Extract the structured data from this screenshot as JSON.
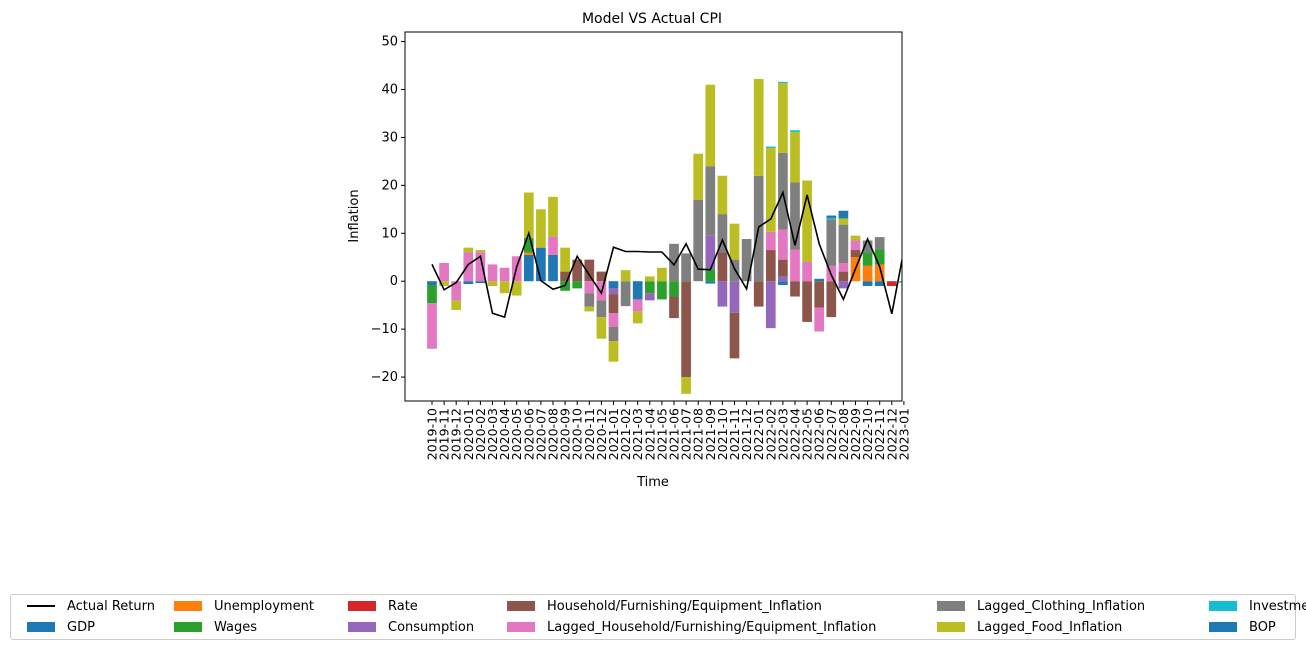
{
  "chart_data": {
    "type": "bar",
    "stacked": true,
    "title": "Model VS Actual CPI",
    "xlabel": "Time",
    "ylabel": "Inflation",
    "ylim": [
      -25,
      52
    ],
    "yticks": [
      -20,
      -10,
      0,
      10,
      20,
      30,
      40,
      50
    ],
    "categories": [
      "2019-10",
      "2019-11",
      "2019-12",
      "2020-01",
      "2020-02",
      "2020-03",
      "2020-04",
      "2020-05",
      "2020-06",
      "2020-07",
      "2020-08",
      "2020-09",
      "2020-10",
      "2020-11",
      "2020-12",
      "2021-01",
      "2021-02",
      "2021-03",
      "2021-04",
      "2021-05",
      "2021-06",
      "2021-07",
      "2021-08",
      "2021-09",
      "2021-10",
      "2021-11",
      "2021-12",
      "2022-01",
      "2022-02",
      "2022-03",
      "2022-04",
      "2022-05",
      "2022-06",
      "2022-07",
      "2022-08",
      "2022-09",
      "2022-10",
      "2022-11",
      "2022-12",
      "2023-01"
    ],
    "line": {
      "name": "Actual Return",
      "color": "#000000",
      "values": [
        3.5,
        -1.8,
        -0.3,
        3.5,
        5.2,
        -6.7,
        -7.5,
        3.0,
        10.0,
        0.1,
        -1.7,
        -0.9,
        5.2,
        1.3,
        -2.5,
        7.1,
        6.2,
        6.2,
        6.1,
        6.1,
        3.4,
        7.8,
        2.5,
        2.4,
        8.6,
        2.6,
        -1.6,
        11.3,
        13.0,
        18.5,
        7.5,
        18.0,
        7.8,
        1.3,
        -3.8,
        2.6,
        8.8,
        3.0,
        -6.8,
        6.5
      ]
    },
    "series": [
      {
        "name": "GDP",
        "color": "#1f77b4",
        "values": [
          -0.8,
          0,
          0,
          -0.6,
          -0.4,
          0,
          0,
          0,
          5.5,
          7.0,
          5.5,
          0,
          0,
          0,
          0,
          -1.5,
          0,
          -3.8,
          0,
          0,
          0,
          0,
          0,
          -0.5,
          0,
          0,
          0,
          0,
          0,
          -0.8,
          0,
          0,
          0,
          0,
          0,
          0,
          -1.0,
          -1.0,
          0,
          0
        ]
      },
      {
        "name": "Unemployment",
        "color": "#ff7f0e",
        "values": [
          0,
          0,
          0,
          0,
          0,
          0,
          0,
          0,
          0.5,
          0,
          0,
          0,
          0,
          0,
          0,
          0,
          0,
          0,
          0,
          0,
          0,
          0,
          0,
          0,
          0,
          0,
          0,
          0,
          0,
          0,
          0,
          0,
          0,
          0,
          0,
          5.0,
          3.2,
          3.5,
          0,
          0
        ]
      },
      {
        "name": "Wages",
        "color": "#2ca02c",
        "values": [
          -3.8,
          0,
          0,
          0,
          0,
          0,
          0,
          0,
          3.0,
          0,
          0,
          -2.0,
          -1.5,
          0,
          0,
          0,
          0,
          0,
          -2.5,
          -3.8,
          -3.2,
          0,
          0,
          2.5,
          0,
          0,
          0,
          0,
          0,
          0,
          0,
          0,
          0,
          0,
          0,
          0,
          2.8,
          3.2,
          0,
          0
        ]
      },
      {
        "name": "Rate",
        "color": "#d62728",
        "values": [
          0,
          0,
          0,
          0,
          0,
          0,
          0,
          0,
          0,
          0,
          0,
          0,
          0,
          0,
          0,
          0,
          0,
          0,
          0,
          0,
          0,
          0,
          0,
          0,
          0,
          0,
          0,
          0,
          0,
          0,
          0,
          0,
          0,
          0,
          0,
          0,
          0,
          0,
          -1.0,
          0
        ]
      },
      {
        "name": "Consumption",
        "color": "#9467bd",
        "values": [
          0,
          0,
          0,
          0,
          0,
          0,
          0,
          0,
          0,
          0,
          0,
          0,
          0,
          0,
          0,
          -1.2,
          0,
          0,
          -1.5,
          0,
          0,
          0,
          0,
          7.0,
          -5.3,
          -6.6,
          0,
          0,
          -9.8,
          1.0,
          0,
          0,
          0,
          0,
          -1.5,
          0,
          0,
          0,
          0,
          0
        ]
      },
      {
        "name": "Household/Furnishing/Equipment_Inflation",
        "color": "#8c564b",
        "values": [
          0,
          0,
          0,
          0,
          0,
          0,
          0,
          0,
          0,
          0,
          0,
          2.0,
          4.5,
          4.5,
          2.0,
          -4.0,
          0,
          0,
          0,
          0,
          -4.5,
          -20.0,
          0,
          0,
          6.0,
          -9.5,
          0,
          -5.3,
          6.5,
          3.5,
          -3.2,
          -8.5,
          -5.5,
          -7.5,
          2.0,
          1.5,
          0,
          0,
          0,
          0
        ]
      },
      {
        "name": "Lagged_Household/Furnishing/Equipment_Inflation",
        "color": "#e377c2",
        "values": [
          -9.5,
          3.8,
          -4.0,
          6.0,
          6.0,
          3.5,
          2.8,
          5.2,
          0,
          0,
          3.8,
          0,
          0,
          -2.5,
          -4.0,
          -2.8,
          0,
          -2.5,
          0,
          0,
          0,
          0,
          0,
          0,
          0,
          0,
          0,
          0,
          3.8,
          6.3,
          6.6,
          4.0,
          -5.0,
          3.2,
          1.8,
          2.0,
          0,
          0,
          0,
          0
        ]
      },
      {
        "name": "Lagged_Clothing_Inflation",
        "color": "#7f7f7f",
        "values": [
          0,
          0,
          0,
          0,
          0,
          0,
          0,
          0,
          0,
          0,
          0,
          0,
          0,
          -2.8,
          -3.5,
          -3.0,
          -5.2,
          0,
          0,
          0,
          7.8,
          5.8,
          17.0,
          14.5,
          8.0,
          4.5,
          8.8,
          22.0,
          0,
          16.0,
          14.0,
          0,
          0,
          9.7,
          8.0,
          0,
          2.5,
          2.5,
          0,
          0
        ]
      },
      {
        "name": "Lagged_Food_Inflation",
        "color": "#bcbd22",
        "values": [
          0,
          -1.0,
          -2.0,
          1.0,
          0.5,
          -1.0,
          -2.5,
          -3.0,
          9.5,
          8.0,
          8.3,
          5.0,
          0,
          -1.0,
          -4.5,
          -4.3,
          2.3,
          -2.5,
          1.0,
          2.8,
          0,
          -3.5,
          9.6,
          17.0,
          8.0,
          7.5,
          0,
          20.2,
          17.5,
          14.5,
          10.5,
          17.0,
          0,
          0,
          1.3,
          1.0,
          0,
          0,
          0,
          0
        ]
      },
      {
        "name": "Investment",
        "color": "#17becf",
        "values": [
          0,
          0,
          0,
          0,
          0,
          0,
          0,
          0,
          0,
          0,
          0,
          0,
          0,
          0,
          0,
          0,
          0,
          0,
          0,
          0,
          0,
          0,
          0,
          0,
          0,
          0,
          0,
          0,
          0.3,
          0.3,
          0.4,
          0,
          0,
          0.3,
          0,
          0,
          0,
          0,
          0,
          -0.3
        ]
      },
      {
        "name": "BOP",
        "color": "#1f77b4",
        "values": [
          0,
          0,
          0,
          0,
          0,
          0,
          0,
          0,
          0,
          0,
          0,
          0,
          0,
          0,
          0,
          0,
          0,
          0,
          0,
          0,
          0,
          0,
          0,
          0,
          0,
          0,
          0,
          0,
          0,
          0,
          0,
          0,
          0.5,
          0.5,
          1.6,
          0,
          0,
          0,
          0,
          0
        ]
      }
    ],
    "legend": {
      "placement": "bottom",
      "columns": 6,
      "entries": [
        {
          "label": "Actual Return",
          "kind": "line",
          "color": "#000000"
        },
        {
          "label": "GDP",
          "kind": "patch",
          "color": "#1f77b4"
        },
        {
          "label": "Unemployment",
          "kind": "patch",
          "color": "#ff7f0e"
        },
        {
          "label": "Wages",
          "kind": "patch",
          "color": "#2ca02c"
        },
        {
          "label": "Rate",
          "kind": "patch",
          "color": "#d62728"
        },
        {
          "label": "Consumption",
          "kind": "patch",
          "color": "#9467bd"
        },
        {
          "label": "Household/Furnishing/Equipment_Inflation",
          "kind": "patch",
          "color": "#8c564b"
        },
        {
          "label": "Lagged_Household/Furnishing/Equipment_Inflation",
          "kind": "patch",
          "color": "#e377c2"
        },
        {
          "label": "Lagged_Clothing_Inflation",
          "kind": "patch",
          "color": "#7f7f7f"
        },
        {
          "label": "Lagged_Food_Inflation",
          "kind": "patch",
          "color": "#bcbd22"
        },
        {
          "label": "Investment",
          "kind": "patch",
          "color": "#17becf"
        },
        {
          "label": "BOP",
          "kind": "patch",
          "color": "#1f77b4"
        }
      ]
    },
    "grid": false
  }
}
